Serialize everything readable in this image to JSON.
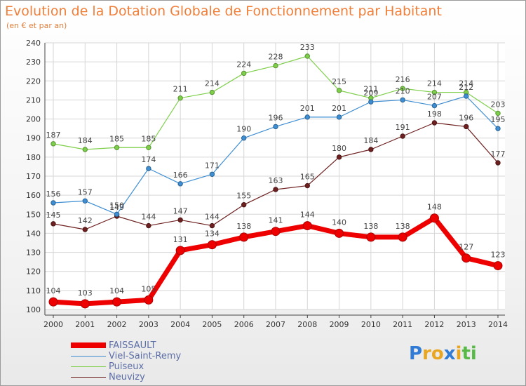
{
  "title": "Evolution de la Dotation Globale de Fonctionnement par Habitant",
  "subtitle": "(en € et par an)",
  "logo": {
    "text": "Proxiti",
    "letters": [
      "P",
      "r",
      "o",
      "x",
      "i",
      "t",
      "i"
    ],
    "colors": [
      "#2f7bd6",
      "#e8a623",
      "#e8a623",
      "#2f7bd6",
      "#e8a623",
      "#58b947",
      "#58b947"
    ]
  },
  "chart_data": {
    "type": "line",
    "title": "Evolution de la Dotation Globale de Fonctionnement par Habitant",
    "subtitle": "(en € et par an)",
    "x": [
      "2000",
      "2001",
      "2002",
      "2003",
      "2004",
      "2005",
      "2006",
      "2007",
      "2008",
      "2009",
      "2010",
      "2011",
      "2012",
      "2013",
      "2014"
    ],
    "ylim": [
      100,
      240
    ],
    "yticks": [
      100,
      110,
      120,
      130,
      140,
      150,
      160,
      170,
      180,
      190,
      200,
      210,
      220,
      230,
      240
    ],
    "grid": true,
    "legend_position": "bottom-left",
    "series": [
      {
        "name": "FAISSAULT",
        "color": "#ee0000",
        "values": [
          104,
          103,
          104,
          105,
          131,
          134,
          138,
          141,
          144,
          140,
          138,
          138,
          148,
          127,
          123
        ]
      },
      {
        "name": "Viel-Saint-Remy",
        "color": "#3e8ed3",
        "values": [
          156,
          157,
          150,
          174,
          166,
          171,
          190,
          196,
          201,
          201,
          209,
          210,
          207,
          212,
          195
        ]
      },
      {
        "name": "Puiseux",
        "color": "#7ecf4a",
        "values": [
          187,
          184,
          185,
          185,
          211,
          214,
          224,
          228,
          233,
          215,
          211,
          216,
          214,
          214,
          203
        ]
      },
      {
        "name": "Neuvizy",
        "color": "#6e1f1f",
        "values": [
          145,
          142,
          149,
          144,
          147,
          144,
          155,
          163,
          165,
          180,
          184,
          191,
          198,
          196,
          177
        ]
      }
    ]
  }
}
